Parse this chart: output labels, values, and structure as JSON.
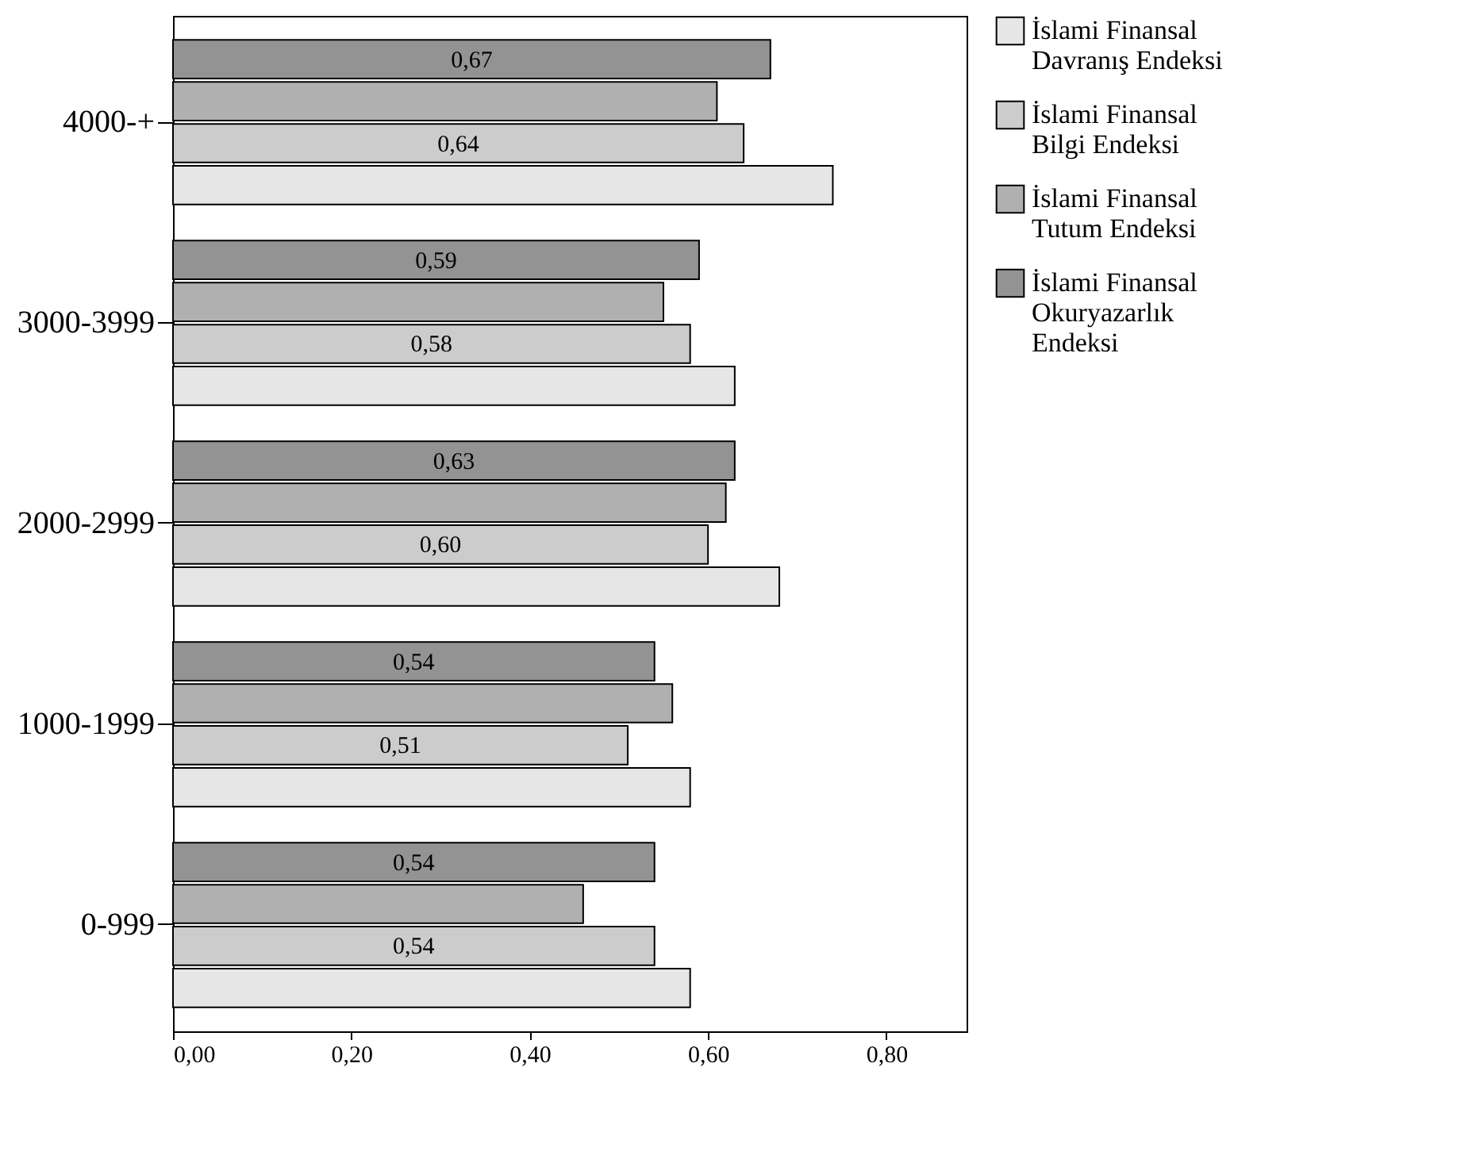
{
  "chart_data": {
    "type": "bar",
    "orientation": "horizontal",
    "categories": [
      "4000-+",
      "3000-3999",
      "2000-2999",
      "1000-1999",
      "0-999"
    ],
    "series": [
      {
        "name": "İslami Finansal Davranış Endeksi",
        "color": "#e6e6e6",
        "values": [
          0.74,
          0.63,
          0.68,
          0.58,
          0.58
        ]
      },
      {
        "name": "İslami Finansal Bilgi Endeksi",
        "color": "#cccccc",
        "values": [
          0.64,
          0.58,
          0.6,
          0.51,
          0.54
        ],
        "value_labels": [
          "0,64",
          "0,58",
          "0,60",
          "0,51",
          "0,54"
        ]
      },
      {
        "name": "İslami Finansal Tutum Endeksi",
        "color": "#b0b0b0",
        "values": [
          0.61,
          0.55,
          0.62,
          0.56,
          0.46
        ]
      },
      {
        "name": "İslami Finansal Okuryazarlık Endeksi",
        "color": "#939393",
        "values": [
          0.67,
          0.59,
          0.63,
          0.54,
          0.54
        ],
        "value_labels": [
          "0,67",
          "0,59",
          "0,63",
          "0,54",
          "0,54"
        ]
      }
    ],
    "xlim": [
      0,
      0.89
    ],
    "xticks": [
      {
        "value": 0,
        "label": "0,00"
      },
      {
        "value": 0.2,
        "label": "0,20"
      },
      {
        "value": 0.4,
        "label": "0,40"
      },
      {
        "value": 0.6,
        "label": "0,60"
      },
      {
        "value": 0.8,
        "label": "0,80"
      }
    ],
    "legend": "right",
    "grid": false
  }
}
